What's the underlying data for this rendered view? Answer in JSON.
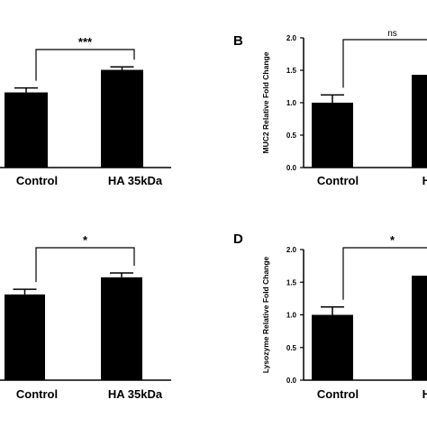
{
  "chart_data": [
    {
      "panel": "",
      "type": "bar",
      "categories": [
        "Control",
        "HA 35kDa"
      ],
      "values": [
        1.0,
        1.3
      ],
      "errors": [
        0.06,
        0.04
      ],
      "ylim": [
        0,
        1.75
      ],
      "ytick_values": [],
      "ylabel": "",
      "significance": "***"
    },
    {
      "panel": "B",
      "type": "bar",
      "categories": [
        "Control",
        "HA"
      ],
      "values": [
        1.0,
        1.43
      ],
      "errors": [
        0.12,
        0.0
      ],
      "ylim": [
        0,
        2.0
      ],
      "ytick_values": [
        "0.0",
        "0.5",
        "1.0",
        "1.5",
        "2.0"
      ],
      "ylabel": "MUC2 Relative Fold Change",
      "significance": "ns"
    },
    {
      "panel": "",
      "type": "bar",
      "categories": [
        "Control",
        "HA 35kDa"
      ],
      "values": [
        1.0,
        1.2
      ],
      "errors": [
        0.06,
        0.05
      ],
      "ylim": [
        0,
        1.65
      ],
      "ytick_values": [],
      "ylabel": "",
      "significance": "*"
    },
    {
      "panel": "D",
      "type": "bar",
      "categories": [
        "Control",
        "HA"
      ],
      "values": [
        1.0,
        1.6
      ],
      "errors": [
        0.12,
        0.0
      ],
      "ylim": [
        0,
        2.0
      ],
      "ytick_values": [
        "0.0",
        "0.5",
        "1.0",
        "1.5",
        "2.0"
      ],
      "ylabel": "Lysozyme Relative Fold Change",
      "significance": "*"
    }
  ]
}
